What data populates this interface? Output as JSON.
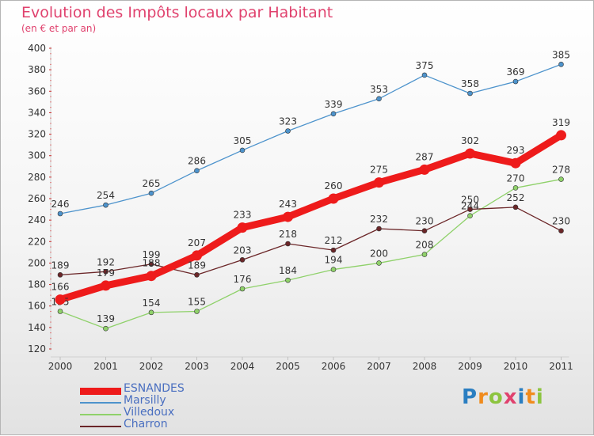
{
  "chart_data": {
    "type": "line",
    "title": "Evolution des Impôts locaux par Habitant",
    "subtitle": "(en € et par an)",
    "xlabel": "",
    "ylabel": "",
    "categories": [
      "2000",
      "2001",
      "2002",
      "2003",
      "2004",
      "2005",
      "2006",
      "2007",
      "2008",
      "2009",
      "2010",
      "2011"
    ],
    "ylim": [
      120,
      400
    ],
    "yticks": [
      120,
      140,
      160,
      180,
      200,
      220,
      240,
      260,
      280,
      300,
      320,
      340,
      360,
      380,
      400
    ],
    "grid": false,
    "legend_position": "bottom-left",
    "series": [
      {
        "name": "Marsilly",
        "color": "#4d93cc",
        "values": [
          246,
          254,
          265,
          286,
          305,
          323,
          339,
          353,
          375,
          358,
          369,
          385
        ]
      },
      {
        "name": "Villedoux",
        "color": "#8fd16a",
        "values": [
          155,
          139,
          154,
          155,
          176,
          184,
          194,
          200,
          208,
          244,
          270,
          278
        ]
      },
      {
        "name": "Charron",
        "color": "#6b2628",
        "values": [
          189,
          192,
          199,
          189,
          203,
          218,
          212,
          232,
          230,
          250,
          252,
          230
        ]
      },
      {
        "name": "ESNANDES",
        "color": "#ee1b1b",
        "values": [
          166,
          179,
          188,
          207,
          233,
          243,
          260,
          275,
          287,
          302,
          293,
          319
        ]
      }
    ],
    "label_overrides": {
      "Villedoux": {
        "0": "155"
      },
      "ESNANDES": {
        "1": "179"
      }
    }
  },
  "legend": {
    "items": [
      {
        "label": "ESNANDES",
        "color": "#ee1b1b",
        "thickness": 9
      },
      {
        "label": "Marsilly",
        "color": "#4d93cc",
        "thickness": 2
      },
      {
        "label": "Villedoux",
        "color": "#8fd16a",
        "thickness": 2
      },
      {
        "label": "Charron",
        "color": "#6b2628",
        "thickness": 2
      }
    ]
  },
  "logo": {
    "text": "Proxiti",
    "letters": [
      {
        "ch": "P",
        "color": "#2a7ec1"
      },
      {
        "ch": "r",
        "color": "#f08b1d"
      },
      {
        "ch": "o",
        "color": "#8cc43f"
      },
      {
        "ch": "x",
        "color": "#e0426e"
      },
      {
        "ch": "i",
        "color": "#2a7ec1"
      },
      {
        "ch": "t",
        "color": "#f08b1d"
      },
      {
        "ch": "i",
        "color": "#8cc43f"
      }
    ]
  }
}
